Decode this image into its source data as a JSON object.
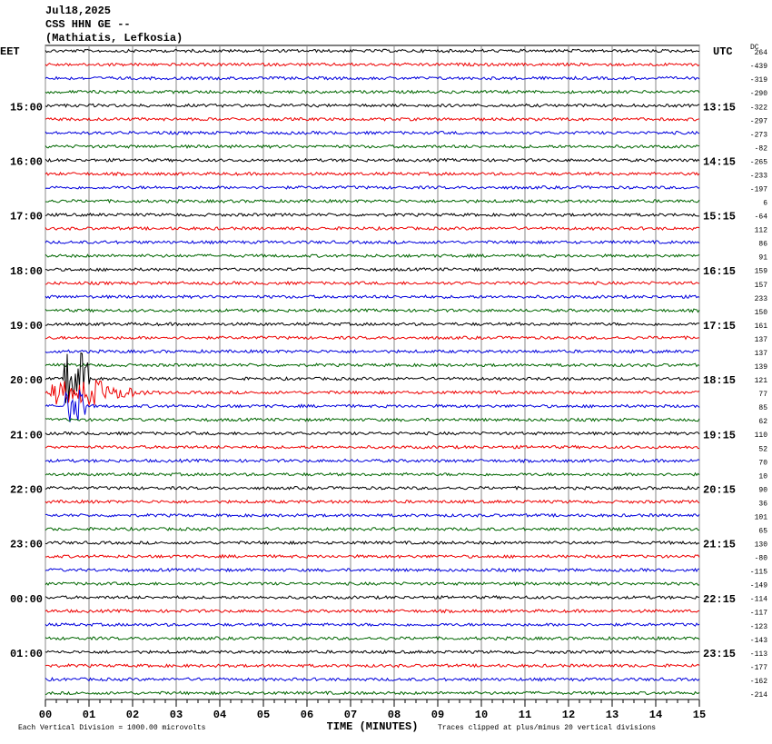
{
  "header": {
    "date": "Jul18,2025",
    "station": "CSS HHN GE --",
    "location": "(Mathiatis, Lefkosia)"
  },
  "left_axis": {
    "title": "EET",
    "labels": [
      "15:00",
      "16:00",
      "17:00",
      "18:00",
      "19:00",
      "20:00",
      "21:00",
      "22:00",
      "23:00",
      "00:00",
      "01:00"
    ]
  },
  "right_axis": {
    "title": "UTC",
    "dc_title": "DC",
    "labels": [
      "13:15",
      "14:15",
      "15:15",
      "16:15",
      "17:15",
      "18:15",
      "19:15",
      "20:15",
      "21:15",
      "22:15",
      "23:15"
    ]
  },
  "dc_offsets": [
    264,
    -439,
    -319,
    -290,
    -322,
    -297,
    -273,
    -82,
    -265,
    -233,
    -197,
    6,
    -64,
    112,
    86,
    91,
    159,
    157,
    233,
    150,
    161,
    137,
    137,
    139,
    121,
    77,
    85,
    62,
    110,
    52,
    70,
    10,
    90,
    36,
    101,
    65,
    130,
    -80,
    -115,
    -149,
    -114,
    -117,
    -123,
    -143,
    -113,
    -177,
    -162,
    -214
  ],
  "x_axis": {
    "title": "TIME (MINUTES)",
    "ticks": [
      "00",
      "01",
      "02",
      "03",
      "04",
      "05",
      "06",
      "07",
      "08",
      "09",
      "10",
      "11",
      "12",
      "13",
      "14",
      "15"
    ]
  },
  "footer": {
    "scale": "Each Vertical Division = 1000.00 microvolts",
    "clip": "Traces clipped at plus/minus 20 vertical divisions"
  }
}
